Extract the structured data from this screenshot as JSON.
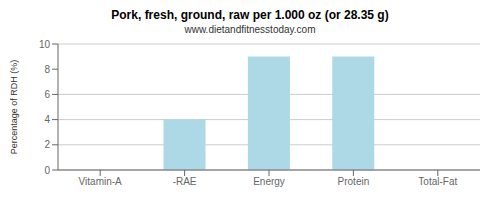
{
  "chart_data": {
    "type": "bar",
    "title": "Pork, fresh, ground, raw per 1.000 oz (or 28.35 g)",
    "subtitle": "www.dietandfitnesstoday.com",
    "categories": [
      "Vitamin-A",
      "-RAE",
      "Energy",
      "Protein",
      "Total-Fat"
    ],
    "values": [
      0,
      4,
      9,
      9,
      0
    ],
    "color": "#add8e6",
    "ylabel": "Percentage of RDH (%)",
    "ylim": [
      0,
      10
    ],
    "yticks": [
      0,
      2,
      4,
      6,
      8,
      10
    ],
    "grid": true
  }
}
